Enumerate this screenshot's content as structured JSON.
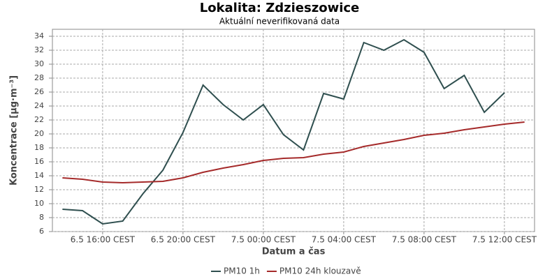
{
  "chart_data": {
    "type": "line",
    "title": "Lokalita: Zdzieszowice",
    "subtitle": "Aktuální neverifikovaná data",
    "x_label": "Datum a čas",
    "y_label": "Koncentrace [µg·m⁻³]",
    "categories": [
      null,
      null,
      "6.5 16:00 CEST",
      null,
      null,
      null,
      "6.5 20:00 CEST",
      null,
      null,
      null,
      "7.5 00:00 CEST",
      null,
      null,
      null,
      "7.5 04:00 CEST",
      null,
      null,
      null,
      "7.5 08:00 CEST",
      null,
      null,
      null,
      "7.5 12:00 CEST",
      null
    ],
    "series": [
      {
        "name": "PM10 1h",
        "color": "#2f4f4f",
        "values": [
          9.2,
          9.0,
          7.1,
          7.5,
          11.4,
          14.8,
          20.2,
          27.0,
          24.2,
          22.0,
          24.2,
          19.9,
          17.7,
          25.8,
          25.0,
          33.1,
          32.0,
          33.5,
          31.7,
          26.5,
          28.4,
          23.1,
          25.9,
          null
        ]
      },
      {
        "name": "PM10 24h klouzavě",
        "color": "#a52a2a",
        "values": [
          13.7,
          13.5,
          13.1,
          13.0,
          13.1,
          13.2,
          13.7,
          14.5,
          15.1,
          15.6,
          16.2,
          16.5,
          16.6,
          17.1,
          17.4,
          18.2,
          18.7,
          19.2,
          19.8,
          20.1,
          20.6,
          21.0,
          21.4,
          21.7
        ]
      }
    ],
    "ylim": [
      6,
      35
    ],
    "yticks": [
      6,
      8,
      10,
      12,
      14,
      16,
      18,
      20,
      22,
      24,
      26,
      28,
      30,
      32,
      34
    ],
    "grid": true,
    "legend": "bottom"
  }
}
